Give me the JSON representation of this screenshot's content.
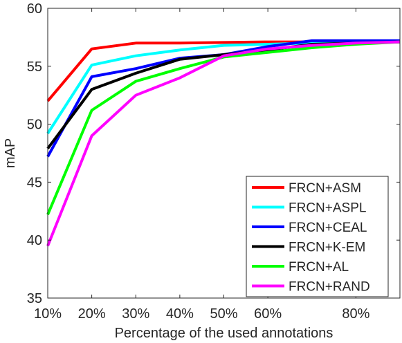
{
  "chart_data": {
    "type": "line",
    "title": "",
    "xlabel": "Percentage of the used annotations",
    "ylabel": "mAP",
    "xlim": [
      10,
      90
    ],
    "ylim": [
      35,
      60
    ],
    "grid": false,
    "legend_position": "bottom-right",
    "x_ticks": [
      {
        "value": 10,
        "label": "10%"
      },
      {
        "value": 20,
        "label": "20%"
      },
      {
        "value": 30,
        "label": "30%"
      },
      {
        "value": 40,
        "label": "40%"
      },
      {
        "value": 50,
        "label": "50%"
      },
      {
        "value": 60,
        "label": "60%"
      },
      {
        "value": 80,
        "label": "80%"
      }
    ],
    "y_ticks": [
      {
        "value": 35,
        "label": "35"
      },
      {
        "value": 40,
        "label": "40"
      },
      {
        "value": 45,
        "label": "45"
      },
      {
        "value": 50,
        "label": "50"
      },
      {
        "value": 55,
        "label": "55"
      },
      {
        "value": 60,
        "label": "60"
      }
    ],
    "x": [
      10,
      20,
      30,
      40,
      50,
      60,
      70,
      80,
      90
    ],
    "series": [
      {
        "name": "FRCN+ASM",
        "color": "#ff0000",
        "values": [
          52.0,
          56.5,
          57.0,
          57.0,
          57.05,
          57.1,
          57.1,
          57.1,
          57.1
        ]
      },
      {
        "name": "FRCN+ASPL",
        "color": "#00ffff",
        "values": [
          49.2,
          55.1,
          55.9,
          56.4,
          56.8,
          56.9,
          57.0,
          57.1,
          57.1
        ]
      },
      {
        "name": "FRCN+CEAL",
        "color": "#0000ff",
        "values": [
          47.2,
          54.1,
          54.8,
          55.7,
          56.0,
          56.7,
          57.2,
          57.2,
          57.2
        ]
      },
      {
        "name": "FRCN+K-EM",
        "color": "#000000",
        "values": [
          47.9,
          53.0,
          54.4,
          55.6,
          56.0,
          56.4,
          56.9,
          57.0,
          57.1
        ]
      },
      {
        "name": "FRCN+AL",
        "color": "#00ff00",
        "values": [
          42.2,
          51.2,
          53.7,
          54.8,
          55.8,
          56.2,
          56.6,
          56.9,
          57.1
        ]
      },
      {
        "name": "FRCN+RAND",
        "color": "#ff00ff",
        "values": [
          39.5,
          49.0,
          52.5,
          54.0,
          55.9,
          56.5,
          56.8,
          57.0,
          57.1
        ]
      }
    ]
  }
}
